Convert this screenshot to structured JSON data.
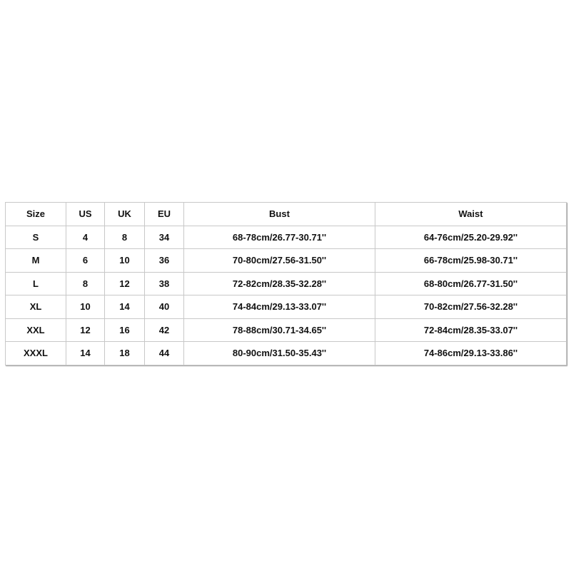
{
  "table": {
    "headers": [
      "Size",
      "US",
      "UK",
      "EU",
      "Bust",
      "Waist"
    ],
    "rows": [
      [
        "S",
        "4",
        "8",
        "34",
        "68-78cm/26.77-30.71''",
        "64-76cm/25.20-29.92''"
      ],
      [
        "M",
        "6",
        "10",
        "36",
        "70-80cm/27.56-31.50''",
        "66-78cm/25.98-30.71''"
      ],
      [
        "L",
        "8",
        "12",
        "38",
        "72-82cm/28.35-32.28''",
        "68-80cm/26.77-31.50''"
      ],
      [
        "XL",
        "10",
        "14",
        "40",
        "74-84cm/29.13-33.07''",
        "70-82cm/27.56-32.28''"
      ],
      [
        "XXL",
        "12",
        "16",
        "42",
        "78-88cm/30.71-34.65''",
        "72-84cm/28.35-33.07''"
      ],
      [
        "XXXL",
        "14",
        "18",
        "44",
        "80-90cm/31.50-35.43''",
        "74-86cm/29.13-33.86''"
      ]
    ]
  }
}
